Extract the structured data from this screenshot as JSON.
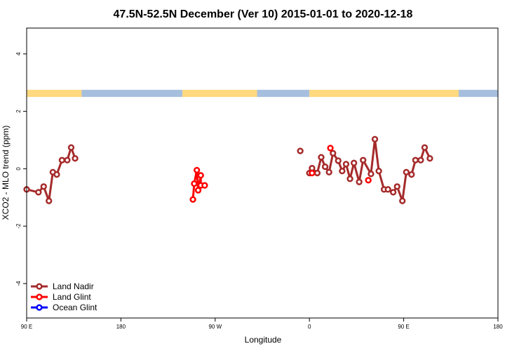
{
  "chart_data": {
    "type": "line",
    "title": "47.5N-52.5N December (Ver 10)   2015-01-01 to 2020-12-18",
    "xlabel": "Longitude",
    "ylabel": "XCO2 - MLO trend (ppm)",
    "xlim": [
      -90,
      270
    ],
    "ylim": [
      -5.2,
      4.9
    ],
    "x_ticks": [
      {
        "value": -90,
        "label": "90 E"
      },
      {
        "value": -18,
        "label": "180"
      },
      {
        "value": 54,
        "label": "90 W"
      },
      {
        "value": 126,
        "label": "0"
      },
      {
        "value": 198,
        "label": "90 E"
      },
      {
        "value": 270,
        "label": "180"
      }
    ],
    "y_ticks": [
      {
        "value": -4,
        "label": "-4"
      },
      {
        "value": -2,
        "label": "-2"
      },
      {
        "value": 0,
        "label": "0"
      },
      {
        "value": 2,
        "label": "2"
      },
      {
        "value": 4,
        "label": "4"
      }
    ],
    "grid": false,
    "legend_position": "bottom-left",
    "land_ocean_band": {
      "y_range": [
        2.5,
        2.75
      ],
      "land_color": "#FFD97F",
      "ocean_color": "#A7BFDF",
      "segments": [
        {
          "from": -90,
          "to": -48,
          "kind": "land"
        },
        {
          "from": -48,
          "to": 29,
          "kind": "ocean"
        },
        {
          "from": 29,
          "to": 86,
          "kind": "land"
        },
        {
          "from": 86,
          "to": 126,
          "kind": "ocean"
        },
        {
          "from": 126,
          "to": 240,
          "kind": "land"
        },
        {
          "from": 240,
          "to": 270,
          "kind": "ocean"
        }
      ]
    },
    "series": [
      {
        "name": "Land Nadir",
        "color": "#A52A2A",
        "segments": [
          [
            [
              -90,
              -0.72
            ],
            [
              -81,
              -0.82
            ],
            [
              -77,
              -0.62
            ],
            [
              -73,
              -1.12
            ],
            [
              -70,
              -0.12
            ],
            [
              -67,
              -0.2
            ],
            [
              -63,
              0.3
            ],
            [
              -59,
              0.3
            ],
            [
              -56,
              0.74
            ],
            [
              -53,
              0.36
            ]
          ],
          [
            [
              119,
              0.62
            ]
          ],
          [
            [
              126,
              -0.15
            ],
            [
              128,
              0.02
            ],
            [
              132,
              -0.15
            ],
            [
              135,
              0.4
            ],
            [
              138,
              0.07
            ],
            [
              141,
              -0.12
            ],
            [
              144,
              0.54
            ],
            [
              148,
              0.28
            ],
            [
              151,
              -0.08
            ],
            [
              154,
              0.16
            ],
            [
              157,
              -0.35
            ],
            [
              160,
              0.2
            ],
            [
              164,
              -0.46
            ],
            [
              167,
              0.3
            ],
            [
              173,
              -0.18
            ],
            [
              176,
              1.03
            ],
            [
              179,
              -0.08
            ],
            [
              183,
              -0.72
            ],
            [
              186,
              -0.72
            ],
            [
              190,
              -0.82
            ],
            [
              193,
              -0.62
            ],
            [
              197,
              -1.12
            ],
            [
              200,
              -0.12
            ],
            [
              204,
              -0.2
            ],
            [
              207,
              0.3
            ],
            [
              211,
              0.3
            ],
            [
              214,
              0.74
            ],
            [
              218,
              0.36
            ]
          ]
        ]
      },
      {
        "name": "Land Glint",
        "color": "#FF0000",
        "segments": [
          [
            [
              37,
              -1.07
            ],
            [
              38,
              -0.52
            ],
            [
              40,
              -0.05
            ],
            [
              41,
              -0.75
            ],
            [
              43,
              -0.23
            ],
            [
              43,
              -0.58
            ],
            [
              46,
              -0.58
            ]
          ],
          [
            [
              128,
              -0.15
            ]
          ],
          [
            [
              142,
              0.72
            ]
          ],
          [
            [
              171,
              -0.4
            ]
          ]
        ]
      },
      {
        "name": "Ocean Glint",
        "color": "#0000FF",
        "segments": []
      }
    ]
  }
}
